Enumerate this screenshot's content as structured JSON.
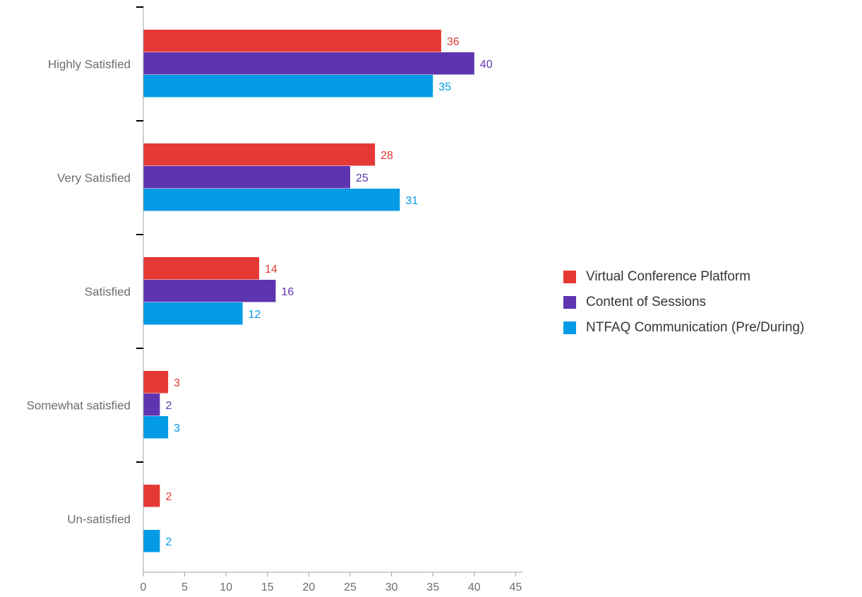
{
  "chart_data": {
    "type": "bar",
    "orientation": "horizontal",
    "categories": [
      "Highly Satisfied",
      "Very Satisfied",
      "Satisfied",
      "Somewhat satisfied",
      "Un-satisfied"
    ],
    "series": [
      {
        "name": "Virtual Conference Platform",
        "color": "#e53935",
        "values": [
          36,
          28,
          14,
          3,
          2
        ]
      },
      {
        "name": "Content of Sessions",
        "color": "#5e35b1",
        "values": [
          40,
          25,
          16,
          2,
          null
        ]
      },
      {
        "name": "NTFAQ Communication (Pre/During)",
        "color": "#039be5",
        "values": [
          35,
          31,
          12,
          3,
          2
        ]
      }
    ],
    "xlim": [
      0,
      45
    ],
    "xticks": [
      0,
      5,
      10,
      15,
      20,
      25,
      30,
      35,
      40,
      45
    ],
    "grid": false,
    "legend_position": "right",
    "data_labels": true
  }
}
